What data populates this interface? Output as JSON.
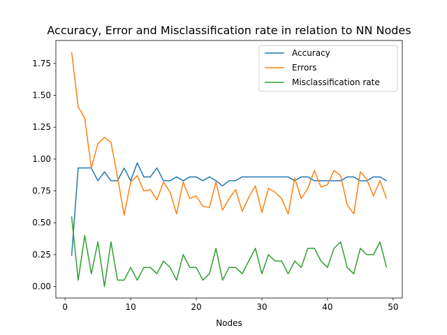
{
  "chart_data": {
    "type": "line",
    "title": "Accuracy, Error and Misclassification rate in relation to NN Nodes",
    "xlabel": "Nodes",
    "ylabel": "",
    "xlim": [
      -1.4,
      51.4
    ],
    "ylim": [
      -0.09,
      1.93
    ],
    "xticks": [
      0,
      10,
      20,
      30,
      40,
      50
    ],
    "yticks": [
      0.0,
      0.25,
      0.5,
      0.75,
      1.0,
      1.25,
      1.5,
      1.75
    ],
    "xtick_labels": [
      "0",
      "10",
      "20",
      "30",
      "40",
      "50"
    ],
    "ytick_labels": [
      "0.00",
      "0.25",
      "0.50",
      "0.75",
      "1.00",
      "1.25",
      "1.50",
      "1.75"
    ],
    "grid": false,
    "legend_position": "top-right",
    "x": [
      1,
      2,
      3,
      4,
      5,
      6,
      7,
      8,
      9,
      10,
      11,
      12,
      13,
      14,
      15,
      16,
      17,
      18,
      19,
      20,
      21,
      22,
      23,
      24,
      25,
      26,
      27,
      28,
      29,
      30,
      31,
      32,
      33,
      34,
      35,
      36,
      37,
      38,
      39,
      40,
      41,
      42,
      43,
      44,
      45,
      46,
      47,
      48,
      49
    ],
    "series": [
      {
        "name": "Accuracy",
        "color": "#1f77b4",
        "values": [
          0.24,
          0.93,
          0.93,
          0.93,
          0.83,
          0.9,
          0.83,
          0.83,
          0.93,
          0.83,
          0.97,
          0.86,
          0.86,
          0.93,
          0.83,
          0.83,
          0.86,
          0.83,
          0.86,
          0.86,
          0.83,
          0.86,
          0.83,
          0.79,
          0.83,
          0.83,
          0.86,
          0.86,
          0.86,
          0.86,
          0.86,
          0.86,
          0.86,
          0.86,
          0.83,
          0.86,
          0.86,
          0.83,
          0.83,
          0.83,
          0.83,
          0.83,
          0.86,
          0.86,
          0.83,
          0.83,
          0.86,
          0.86,
          0.83
        ]
      },
      {
        "name": "Errors",
        "color": "#ff7f0e",
        "values": [
          1.84,
          1.41,
          1.32,
          0.93,
          1.12,
          1.17,
          1.13,
          0.86,
          0.56,
          0.82,
          0.87,
          0.75,
          0.76,
          0.68,
          0.82,
          0.74,
          0.57,
          0.82,
          0.69,
          0.71,
          0.63,
          0.62,
          0.82,
          0.6,
          0.69,
          0.76,
          0.59,
          0.7,
          0.79,
          0.58,
          0.77,
          0.74,
          0.69,
          0.57,
          0.85,
          0.69,
          0.77,
          0.91,
          0.78,
          0.8,
          0.91,
          0.87,
          0.64,
          0.57,
          0.9,
          0.84,
          0.71,
          0.83,
          0.69
        ]
      },
      {
        "name": "Misclassification rate",
        "color": "#2ca02c",
        "values": [
          0.55,
          0.05,
          0.4,
          0.1,
          0.35,
          0.0,
          0.35,
          0.05,
          0.05,
          0.15,
          0.05,
          0.15,
          0.15,
          0.1,
          0.2,
          0.15,
          0.05,
          0.25,
          0.15,
          0.15,
          0.05,
          0.1,
          0.3,
          0.05,
          0.15,
          0.15,
          0.1,
          0.2,
          0.3,
          0.1,
          0.25,
          0.2,
          0.2,
          0.1,
          0.2,
          0.15,
          0.3,
          0.3,
          0.2,
          0.15,
          0.3,
          0.35,
          0.15,
          0.1,
          0.3,
          0.25,
          0.25,
          0.35,
          0.15
        ]
      }
    ]
  }
}
